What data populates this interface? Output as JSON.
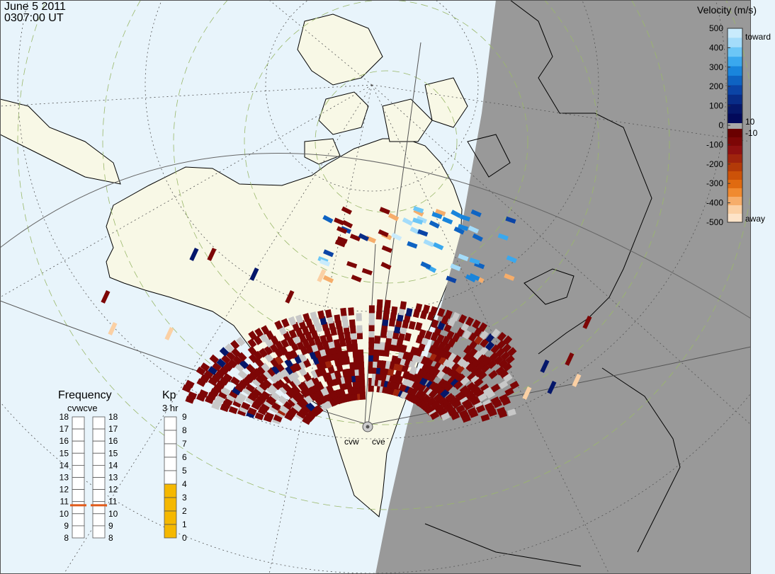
{
  "title": {
    "date": "June 5 2011",
    "time": "0307:00 UT"
  },
  "colorbar": {
    "title": "Velocity (m/s)",
    "ticks": [
      "500",
      "400",
      "300",
      "200",
      "100",
      "0",
      "-100",
      "-200",
      "-300",
      "-400",
      "-500"
    ],
    "side_labels": {
      "toward": "toward",
      "away": "away",
      "plus10": "10",
      "minus10": "-10"
    },
    "toward_colors": [
      "#c9ebfc",
      "#a4dcfa",
      "#6cc6f6",
      "#3aa8ee",
      "#1985dc",
      "#0e63c2",
      "#0b44a6",
      "#082c87",
      "#05176a",
      "#02095a"
    ],
    "away_colors": [
      "#6a0000",
      "#7d0606",
      "#8f1010",
      "#a0240d",
      "#b33a08",
      "#cc5208",
      "#e06a10",
      "#f08a30",
      "#f6ad6a",
      "#fbd0a4",
      "#fde3c8"
    ],
    "gray": "#a8a8a8"
  },
  "frequency": {
    "title": "Frequency",
    "radars_label": "cvwcve",
    "ticks": [
      "18",
      "17",
      "16",
      "15",
      "14",
      "13",
      "12",
      "11",
      "10",
      "9",
      "8"
    ],
    "cvw_value": 10.7,
    "cve_value": 10.7,
    "marker_color": "#e05a1a"
  },
  "kp": {
    "title": "Kp",
    "subtitle": "3 hr",
    "ticks": [
      "9",
      "8",
      "7",
      "6",
      "5",
      "4",
      "3",
      "2",
      "1",
      "0"
    ],
    "value": 4,
    "fill_color": "#f5b800"
  },
  "radars": [
    {
      "name": "cvw"
    },
    {
      "name": "cve"
    }
  ],
  "colors": {
    "ocean": "#e8f4fb",
    "land": "#f8f8e6",
    "night": "#999999"
  }
}
